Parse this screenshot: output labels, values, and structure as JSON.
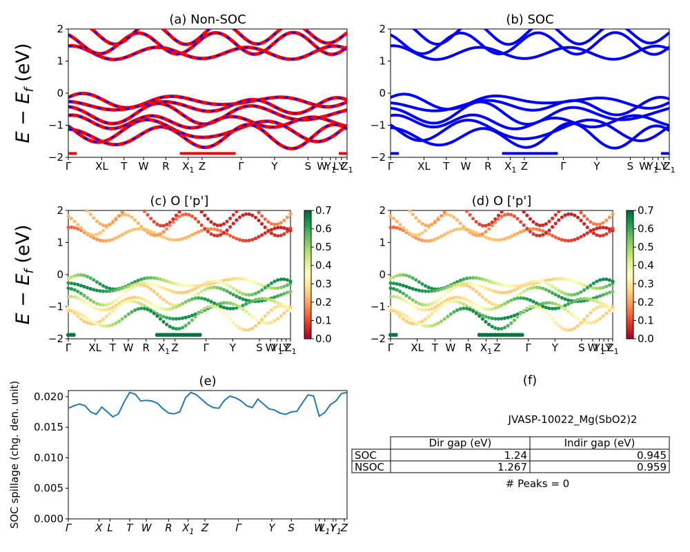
{
  "colors": {
    "nsoc": "#ff0000",
    "soc": "#0000ff",
    "spillage": "#1f77b4",
    "colormap": [
      "#a50026",
      "#d73027",
      "#f46d43",
      "#fdae61",
      "#fee08b",
      "#ffffbf",
      "#d9ef8b",
      "#a6d96a",
      "#66bd63",
      "#1a9850",
      "#006837"
    ]
  },
  "chart_data": [
    {
      "id": "a",
      "type": "line",
      "title": "(a) Non-SOC",
      "ylabel": "$E - E_f$ (eV)",
      "ylim": [
        -2,
        2
      ],
      "yticks": [
        "−2",
        "−1",
        "0",
        "1",
        "2"
      ],
      "ytick_values": [
        -2,
        -1,
        0,
        1,
        2
      ],
      "x_labels": [
        "Γ",
        "XL",
        "T",
        "W",
        "R",
        "X1",
        "Z",
        "Γ",
        "Y",
        "S",
        "W",
        "Y1",
        "L",
        "Y",
        "Z1"
      ],
      "x_positions": [
        0,
        0.12,
        0.2,
        0.27,
        0.35,
        0.43,
        0.48,
        0.62,
        0.74,
        0.86,
        0.91,
        0.94,
        0.96,
        0.98,
        1.0
      ],
      "series": [
        {
          "values_valence": [
            -0.15,
            -0.35,
            -0.55,
            -0.7,
            -0.95,
            -1.15,
            -1.6,
            -1.85,
            -1.9
          ]
        },
        {
          "values_conduction": [
            1.0,
            1.3,
            1.45,
            1.7,
            1.9
          ]
        }
      ],
      "overlay_dash": true
    },
    {
      "id": "b",
      "type": "line",
      "title": "(b) SOC",
      "ylim": [
        -2,
        2
      ],
      "yticks": [
        "−2",
        "−1",
        "0",
        "1",
        "2"
      ],
      "ytick_values": [
        -2,
        -1,
        0,
        1,
        2
      ],
      "x_labels": [
        "Γ",
        "XL",
        "T",
        "W",
        "R",
        "X1",
        "Z",
        "Γ",
        "Y",
        "S",
        "W",
        "Y1",
        "L",
        "Y",
        "Z1"
      ],
      "x_positions": [
        0,
        0.12,
        0.2,
        0.27,
        0.35,
        0.43,
        0.48,
        0.62,
        0.74,
        0.86,
        0.91,
        0.94,
        0.96,
        0.98,
        1.0
      ]
    },
    {
      "id": "c",
      "type": "scatter",
      "title": "(c)  O ['p']",
      "ylabel": "$E - E_f$ (eV)",
      "ylim": [
        -2,
        2
      ],
      "yticks": [
        "−2",
        "−1",
        "0",
        "1",
        "2"
      ],
      "ytick_values": [
        -2,
        -1,
        0,
        1,
        2
      ],
      "x_labels": [
        "Γ",
        "XL",
        "T",
        "W",
        "R",
        "X1",
        "Z",
        "Γ",
        "Y",
        "S",
        "W",
        "Y1",
        "L",
        "Y",
        "Z1"
      ],
      "x_positions": [
        0,
        0.12,
        0.2,
        0.27,
        0.35,
        0.43,
        0.48,
        0.62,
        0.74,
        0.86,
        0.91,
        0.94,
        0.96,
        0.98,
        1.0
      ],
      "colorbar": {
        "min": 0.0,
        "max": 0.7,
        "ticks": [
          "0.0",
          "0.1",
          "0.2",
          "0.3",
          "0.4",
          "0.5",
          "0.6",
          "0.7"
        ]
      }
    },
    {
      "id": "d",
      "type": "scatter",
      "title": "(d) O ['p']",
      "ylim": [
        -2,
        2
      ],
      "yticks": [
        "−2",
        "−1",
        "0",
        "1",
        "2"
      ],
      "ytick_values": [
        -2,
        -1,
        0,
        1,
        2
      ],
      "x_labels": [
        "Γ",
        "XL",
        "T",
        "W",
        "R",
        "X1",
        "Z",
        "Γ",
        "Y",
        "S",
        "W",
        "Y1",
        "L",
        "Y",
        "Z1"
      ],
      "x_positions": [
        0,
        0.12,
        0.2,
        0.27,
        0.35,
        0.43,
        0.48,
        0.62,
        0.74,
        0.86,
        0.91,
        0.94,
        0.96,
        0.98,
        1.0
      ],
      "colorbar": {
        "min": 0.0,
        "max": 0.7,
        "ticks": [
          "0.0",
          "0.1",
          "0.2",
          "0.3",
          "0.4",
          "0.5",
          "0.6",
          "0.7"
        ]
      }
    },
    {
      "id": "e",
      "type": "line",
      "title": "(e)",
      "ylabel": "SOC spillage (chg. den. unit)",
      "ylim": [
        0,
        0.021
      ],
      "yticks": [
        "0.000",
        "0.005",
        "0.010",
        "0.015",
        "0.020"
      ],
      "ytick_values": [
        0,
        0.005,
        0.01,
        0.015,
        0.02
      ],
      "x_labels": [
        "Γ",
        "X",
        "L",
        "T",
        "W",
        "R",
        "X1",
        "Z",
        "Γ",
        "Y",
        "S",
        "W",
        "L1",
        "Y",
        "Y1",
        "Z"
      ],
      "x_positions": [
        0,
        0.11,
        0.15,
        0.22,
        0.28,
        0.36,
        0.43,
        0.49,
        0.61,
        0.73,
        0.8,
        0.9,
        0.92,
        0.95,
        0.96,
        0.99
      ],
      "x": [
        0,
        0.02,
        0.04,
        0.06,
        0.08,
        0.1,
        0.12,
        0.14,
        0.16,
        0.18,
        0.2,
        0.22,
        0.24,
        0.26,
        0.28,
        0.3,
        0.32,
        0.34,
        0.36,
        0.38,
        0.4,
        0.42,
        0.44,
        0.46,
        0.48,
        0.5,
        0.52,
        0.54,
        0.56,
        0.58,
        0.6,
        0.62,
        0.64,
        0.66,
        0.68,
        0.7,
        0.72,
        0.74,
        0.76,
        0.78,
        0.8,
        0.82,
        0.84,
        0.86,
        0.88,
        0.9,
        0.92,
        0.94,
        0.96,
        0.98,
        1.0
      ],
      "y": [
        0.0181,
        0.0185,
        0.0188,
        0.0185,
        0.0175,
        0.0171,
        0.0183,
        0.0175,
        0.0167,
        0.0172,
        0.0191,
        0.0207,
        0.0204,
        0.0193,
        0.0194,
        0.0193,
        0.0189,
        0.018,
        0.0173,
        0.0172,
        0.0175,
        0.0198,
        0.0207,
        0.0203,
        0.0195,
        0.0187,
        0.0182,
        0.0181,
        0.0194,
        0.0201,
        0.0198,
        0.0193,
        0.0185,
        0.0182,
        0.0196,
        0.0188,
        0.018,
        0.0178,
        0.0173,
        0.0171,
        0.0175,
        0.0176,
        0.019,
        0.0203,
        0.0201,
        0.0168,
        0.0174,
        0.0187,
        0.0193,
        0.0205,
        0.0207
      ]
    }
  ],
  "panel_f": {
    "title": "(f)",
    "material": "JVASP-10022_Mg(SbO2)2",
    "columns": [
      "Dir gap (eV)",
      "Indir gap (eV)"
    ],
    "rows": [
      {
        "label": "SOC",
        "dir": "1.24",
        "indir": "0.945"
      },
      {
        "label": "NSOC",
        "dir": "1.267",
        "indir": "0.959"
      }
    ],
    "peaks": "# Peaks = 0"
  }
}
